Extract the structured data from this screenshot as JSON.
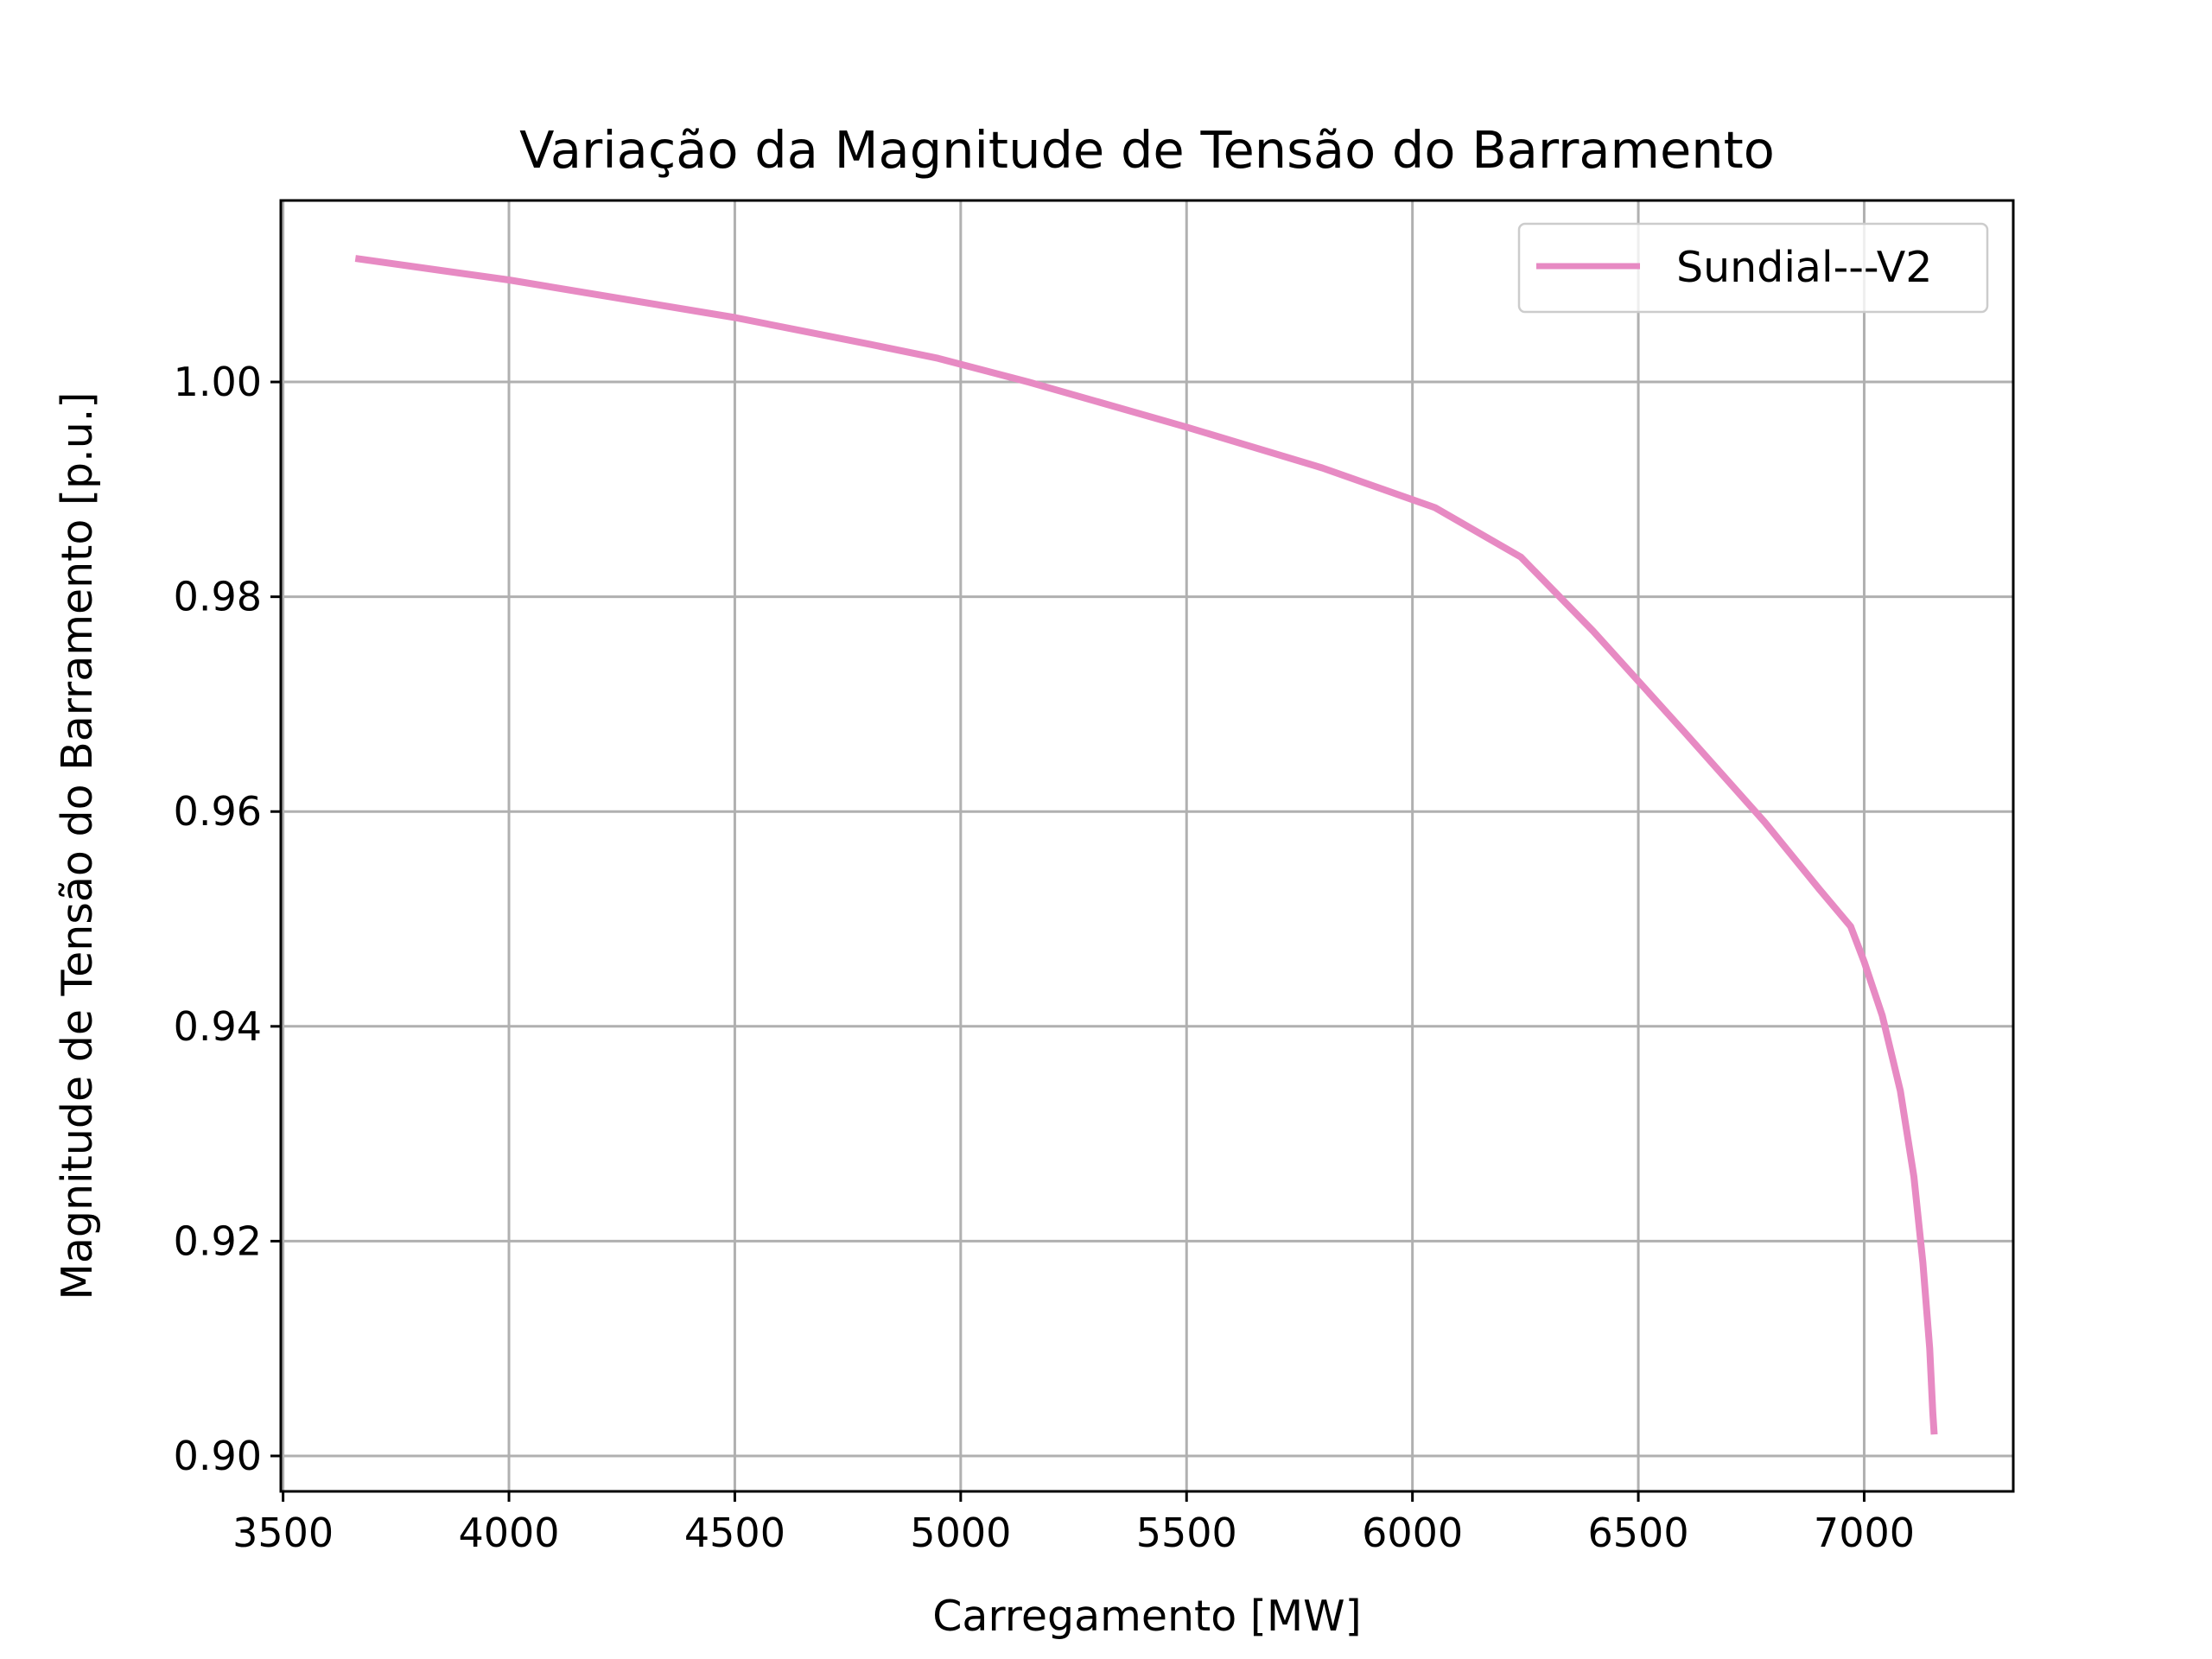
{
  "chart_data": {
    "type": "line",
    "title": "Variação da Magnitude de Tensão do Barramento",
    "xlabel": "Carregamento [MW]",
    "ylabel": "Magnitude de Tensão do Barramento [p.u.]",
    "xlim": [
      3495,
      7330
    ],
    "ylim": [
      0.8967,
      1.0169
    ],
    "xticks": [
      3500,
      4000,
      4500,
      5000,
      5500,
      6000,
      6500,
      7000
    ],
    "xtick_labels": [
      "3500",
      "4000",
      "4500",
      "5000",
      "5500",
      "6000",
      "6500",
      "7000"
    ],
    "yticks": [
      0.9,
      0.92,
      0.94,
      0.96,
      0.98,
      1.0
    ],
    "ytick_labels": [
      "0.90",
      "0.92",
      "0.94",
      "0.96",
      "0.98",
      "1.00"
    ],
    "grid": true,
    "legend_position": "top-right",
    "series": [
      {
        "name": "Sundial---V2",
        "color": "#e78ac3",
        "x": [
          3660,
          4000,
          4500,
          4800,
          4950,
          5150,
          5500,
          5800,
          6050,
          6240,
          6400,
          6600,
          6780,
          6900,
          6970,
          7000,
          7040,
          7080,
          7110,
          7130,
          7145,
          7152,
          7155
        ],
        "y": [
          1.0115,
          1.0095,
          1.006,
          1.0035,
          1.0022,
          1.0,
          0.9958,
          0.992,
          0.9883,
          0.9837,
          0.9768,
          0.9675,
          0.959,
          0.9528,
          0.9493,
          0.946,
          0.941,
          0.934,
          0.926,
          0.918,
          0.91,
          0.904,
          0.902
        ]
      }
    ]
  }
}
